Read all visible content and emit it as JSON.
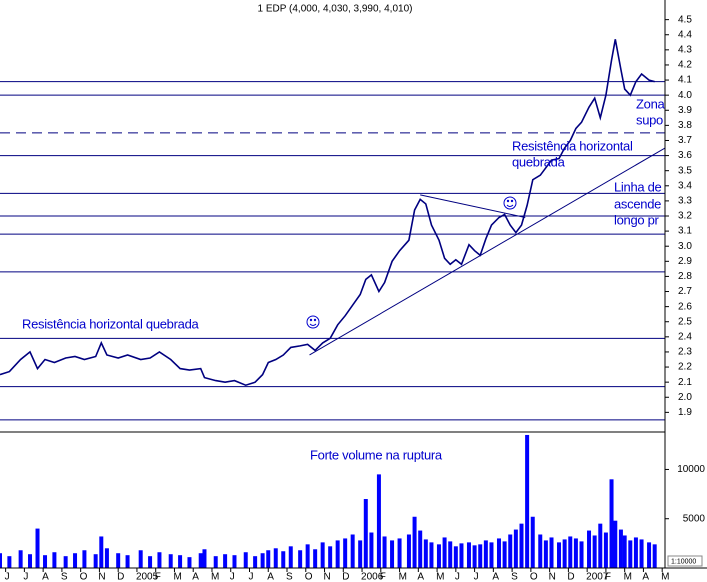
{
  "chart_data": {
    "type": "line",
    "title": "1 EDP (4,000, 4,030, 3,990, 4,010)",
    "x": [
      -0.3,
      0.2,
      0.8,
      1.3,
      1.7,
      2.1,
      2.6,
      3.2,
      3.7,
      4.2,
      4.8,
      5.1,
      5.4,
      6.0,
      6.5,
      7.2,
      7.7,
      8.2,
      8.8,
      9.3,
      9.8,
      10.4,
      10.6,
      11.2,
      11.7,
      12.2,
      12.8,
      13.3,
      13.7,
      14.0,
      14.4,
      14.8,
      15.2,
      15.7,
      16.1,
      16.5,
      16.9,
      17.3,
      17.7,
      18.1,
      18.5,
      18.9,
      19.2,
      19.5,
      19.9,
      20.2,
      20.6,
      21.0,
      21.5,
      21.8,
      22.1,
      22.4,
      22.7,
      23.1,
      23.4,
      23.7,
      24.0,
      24.3,
      24.7,
      25.0,
      25.3,
      25.6,
      25.9,
      26.3,
      26.6,
      26.9,
      27.2,
      27.5,
      27.8,
      28.1,
      28.5,
      28.8,
      29.1,
      29.5,
      29.8,
      30.1,
      30.4,
      30.7,
      31.1,
      31.4,
      31.7,
      32.0,
      32.3,
      32.5,
      32.8,
      33.0,
      33.3,
      33.6,
      33.9,
      34.3,
      34.6
    ],
    "series": [
      {
        "color": "#000080",
        "values": [
          2.15,
          2.17,
          2.25,
          2.3,
          2.19,
          2.25,
          2.23,
          2.26,
          2.27,
          2.25,
          2.27,
          2.36,
          2.28,
          2.26,
          2.28,
          2.25,
          2.26,
          2.3,
          2.25,
          2.19,
          2.18,
          2.19,
          2.13,
          2.11,
          2.1,
          2.11,
          2.08,
          2.1,
          2.15,
          2.23,
          2.25,
          2.28,
          2.33,
          2.34,
          2.35,
          2.31,
          2.36,
          2.39,
          2.48,
          2.54,
          2.61,
          2.68,
          2.78,
          2.81,
          2.7,
          2.76,
          2.9,
          2.97,
          3.04,
          3.24,
          3.31,
          3.28,
          3.14,
          3.04,
          2.92,
          2.88,
          2.91,
          2.88,
          3.01,
          2.97,
          2.94,
          3.05,
          3.14,
          3.19,
          3.21,
          3.14,
          3.09,
          3.14,
          3.27,
          3.44,
          3.47,
          3.52,
          3.57,
          3.58,
          3.65,
          3.7,
          3.78,
          3.82,
          3.92,
          3.98,
          3.85,
          4.0,
          4.23,
          4.37,
          4.17,
          4.04,
          4.0,
          4.09,
          4.14,
          4.1,
          4.09
        ]
      },
      {
        "type": "bar",
        "axis": "y2",
        "color": "#0000ff",
        "values": [
          1500,
          1200,
          1800,
          1400,
          4000,
          1300,
          1600,
          1200,
          1500,
          1800,
          1400,
          3200,
          2000,
          1500,
          1300,
          1800,
          1200,
          1600,
          1400,
          1300,
          1100,
          1500,
          1900,
          1200,
          1400,
          1300,
          1600,
          1200,
          1500,
          1800,
          2000,
          1700,
          2200,
          1800,
          2400,
          1900,
          2600,
          2200,
          2800,
          3000,
          3400,
          2800,
          7000,
          3600,
          9500,
          3200,
          2800,
          3000,
          3400,
          5200,
          3800,
          2900,
          2600,
          2400,
          3100,
          2700,
          2200,
          2500,
          2600,
          2300,
          2400,
          2800,
          2600,
          3000,
          2700,
          3400,
          3900,
          4500,
          13500,
          5200,
          3400,
          2800,
          3100,
          2600,
          2900,
          3200,
          3000,
          2700,
          3800,
          3300,
          4500,
          3600,
          9000,
          4800,
          3900,
          3300,
          2800,
          3100,
          2900,
          2600,
          2400
        ]
      }
    ],
    "xlim": [
      -0.3,
      35.15
    ],
    "xticks": [
      {
        "value": 0,
        "label": "J"
      },
      {
        "value": 1,
        "label": "J"
      },
      {
        "value": 2,
        "label": "A"
      },
      {
        "value": 3,
        "label": "S"
      },
      {
        "value": 4,
        "label": "O"
      },
      {
        "value": 5,
        "label": "N"
      },
      {
        "value": 6,
        "label": "D"
      },
      {
        "value": 7,
        "label": "2005"
      },
      {
        "value": 8,
        "label": "F"
      },
      {
        "value": 9,
        "label": "M"
      },
      {
        "value": 10,
        "label": "A"
      },
      {
        "value": 11,
        "label": "M"
      },
      {
        "value": 12,
        "label": "J"
      },
      {
        "value": 13,
        "label": "J"
      },
      {
        "value": 14,
        "label": "A"
      },
      {
        "value": 15,
        "label": "S"
      },
      {
        "value": 16,
        "label": "O"
      },
      {
        "value": 17,
        "label": "N"
      },
      {
        "value": 18,
        "label": "D"
      },
      {
        "value": 19,
        "label": "2006"
      },
      {
        "value": 20,
        "label": "F"
      },
      {
        "value": 21,
        "label": "M"
      },
      {
        "value": 22,
        "label": "A"
      },
      {
        "value": 23,
        "label": "M"
      },
      {
        "value": 24,
        "label": "J"
      },
      {
        "value": 25,
        "label": "J"
      },
      {
        "value": 26,
        "label": "A"
      },
      {
        "value": 27,
        "label": "S"
      },
      {
        "value": 28,
        "label": "O"
      },
      {
        "value": 29,
        "label": "N"
      },
      {
        "value": 30,
        "label": "D"
      },
      {
        "value": 31,
        "label": "2007"
      },
      {
        "value": 32,
        "label": "F"
      },
      {
        "value": 33,
        "label": "M"
      },
      {
        "value": 34,
        "label": "A"
      },
      {
        "value": 35,
        "label": "M"
      }
    ],
    "ylim": [
      1.77,
      4.63
    ],
    "yticks": [
      1.9,
      {
        "value": 2,
        "label": "2.0"
      },
      2.1,
      2.2,
      2.3,
      2.4,
      2.5,
      2.6,
      2.7,
      2.8,
      2.9,
      {
        "value": 3,
        "label": "3.0"
      },
      3.1,
      3.2,
      3.3,
      3.4,
      3.5,
      3.6,
      3.7,
      3.8,
      3.9,
      {
        "value": 4,
        "label": "4.0"
      },
      4.1,
      4.2,
      4.3,
      4.4,
      4.5
    ],
    "y2lim": [
      0,
      13800
    ],
    "y2ticks": [
      5000,
      10000
    ],
    "y2_scale_label": "1:10000",
    "hlines": [
      4.09,
      4.0,
      3.6,
      3.35,
      3.2,
      3.08,
      2.83,
      2.39,
      2.07,
      1.85
    ],
    "dashed_hlines": [
      3.75
    ],
    "trendlines": [
      {
        "x": [
          16.2,
          35.15
        ],
        "values": [
          2.28,
          3.65
        ]
      },
      {
        "x": [
          22.1,
          27.7
        ],
        "values": [
          3.34,
          3.19
        ]
      }
    ],
    "annotations": [
      "Resistência horizontal quebrada",
      "Forte volume na ruptura",
      "Resistência horizontal",
      "quebrada",
      "Zona",
      "supo",
      "Linha de",
      "ascende",
      "longo pr"
    ]
  }
}
